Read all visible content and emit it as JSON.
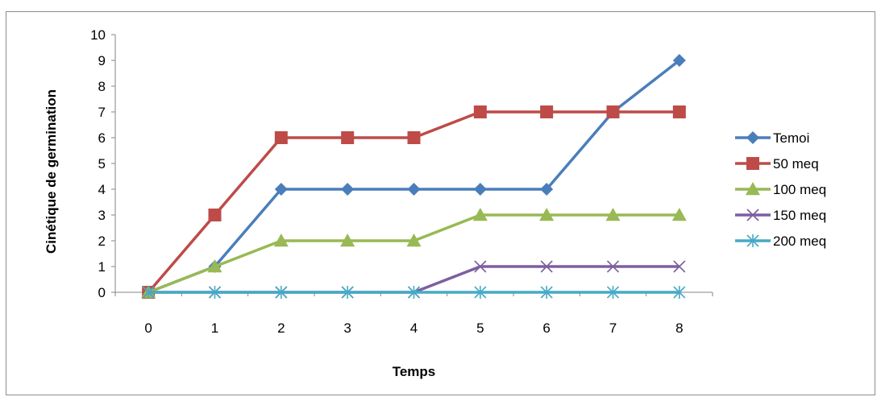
{
  "chart_data": {
    "type": "line",
    "title": "",
    "xlabel": "Temps",
    "ylabel": "Cinétique de germination",
    "x": [
      0,
      1,
      2,
      3,
      4,
      5,
      6,
      7,
      8
    ],
    "ylim": [
      0,
      10
    ],
    "yticks": [
      0,
      1,
      2,
      3,
      4,
      5,
      6,
      7,
      8,
      9,
      10
    ],
    "grid": false,
    "legend_position": "right",
    "series": [
      {
        "name": "Temoi",
        "color": "#4A7EBB",
        "marker": "diamond",
        "values": [
          0,
          1,
          4,
          4,
          4,
          4,
          4,
          7,
          9
        ]
      },
      {
        "name": "50 meq",
        "color": "#BE4B48",
        "marker": "square",
        "values": [
          0,
          3,
          6,
          6,
          6,
          7,
          7,
          7,
          7
        ]
      },
      {
        "name": "100 meq",
        "color": "#98B954",
        "marker": "triangle",
        "values": [
          0,
          1,
          2,
          2,
          2,
          3,
          3,
          3,
          3
        ]
      },
      {
        "name": "150 meq",
        "color": "#7D5FA0",
        "marker": "x",
        "values": [
          0,
          0,
          0,
          0,
          0,
          1,
          1,
          1,
          1
        ]
      },
      {
        "name": "200 meq",
        "color": "#46AAC5",
        "marker": "star",
        "values": [
          0,
          0,
          0,
          0,
          0,
          0,
          0,
          0,
          0
        ]
      }
    ]
  }
}
